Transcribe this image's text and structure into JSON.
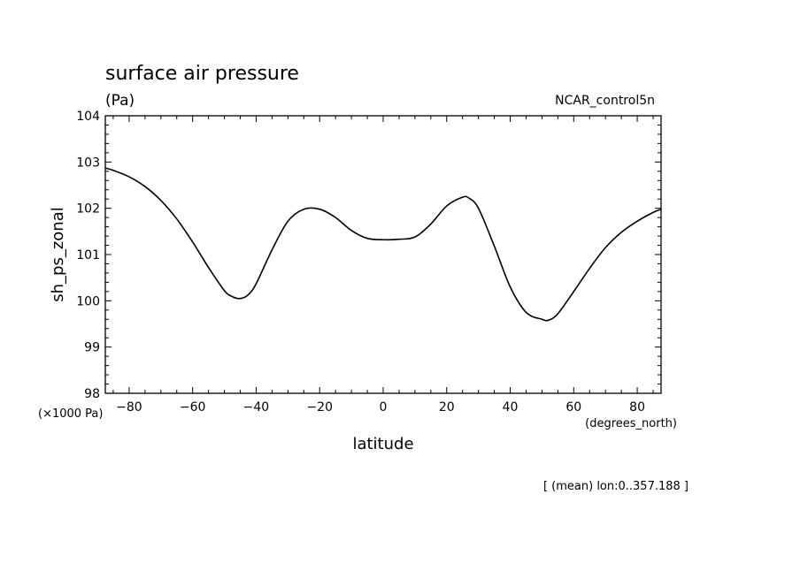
{
  "chart_data": {
    "type": "line",
    "title": "surface air pressure",
    "units": "(Pa)",
    "source": "NCAR_control5n",
    "xlabel": "latitude",
    "ylabel": "sh_ps_zonal",
    "x_units": "(degrees_north)",
    "y_scale_label": "(×1000 Pa)",
    "footnote": "[ (mean) lon:0..357.188 ]",
    "xlim": [
      -87.5,
      87.5
    ],
    "ylim": [
      98,
      104
    ],
    "x_ticks": [
      -80,
      -60,
      -40,
      -20,
      0,
      20,
      40,
      60,
      80
    ],
    "x_tick_labels": [
      "−80",
      "−60",
      "−40",
      "−20",
      "0",
      "20",
      "40",
      "60",
      "80"
    ],
    "y_ticks": [
      98,
      99,
      100,
      101,
      102,
      103,
      104
    ],
    "y_tick_labels": [
      "98",
      "99",
      "100",
      "101",
      "102",
      "103",
      "104"
    ],
    "series": [
      {
        "name": "sh_ps_zonal",
        "x": [
          -87.5,
          -85,
          -80,
          -75,
          -70,
          -65,
          -60,
          -55,
          -50,
          -47.5,
          -45,
          -42.5,
          -40,
          -35,
          -30,
          -25,
          -20,
          -15,
          -10,
          -5,
          0,
          5,
          10,
          15,
          20,
          25,
          27,
          30,
          35,
          40,
          45,
          50,
          52,
          55,
          60,
          65,
          70,
          75,
          80,
          85,
          87.5
        ],
        "y": [
          102.87,
          102.82,
          102.68,
          102.47,
          102.17,
          101.77,
          101.27,
          100.72,
          100.22,
          100.09,
          100.05,
          100.13,
          100.37,
          101.1,
          101.72,
          101.98,
          101.98,
          101.8,
          101.52,
          101.35,
          101.32,
          101.33,
          101.38,
          101.66,
          102.05,
          102.24,
          102.22,
          102.0,
          101.18,
          100.3,
          99.75,
          99.6,
          99.58,
          99.72,
          100.2,
          100.7,
          101.15,
          101.48,
          101.72,
          101.91,
          101.98
        ]
      }
    ]
  }
}
